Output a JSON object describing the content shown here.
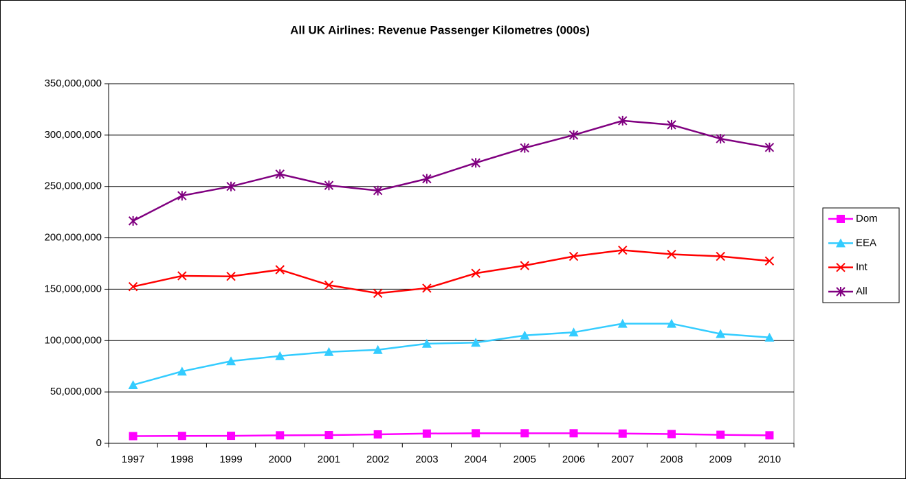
{
  "chart_data": {
    "type": "line",
    "title": "All UK Airlines: Revenue Passenger Kilometres (000s)",
    "categories": [
      "1997",
      "1998",
      "1999",
      "2000",
      "2001",
      "2002",
      "2003",
      "2004",
      "2005",
      "2006",
      "2007",
      "2008",
      "2009",
      "2010"
    ],
    "series": [
      {
        "name": "Dom",
        "color": "#ff00ff",
        "marker": "square",
        "values": [
          7000000,
          7200000,
          7300000,
          7800000,
          8000000,
          8700000,
          9500000,
          9800000,
          9800000,
          9800000,
          9500000,
          9000000,
          8300000,
          7800000
        ]
      },
      {
        "name": "EEA",
        "color": "#33ccff",
        "marker": "triangle",
        "values": [
          56800000,
          70000000,
          80000000,
          85000000,
          89000000,
          91000000,
          97000000,
          98000000,
          105000000,
          108000000,
          116500000,
          116500000,
          106500000,
          103000000
        ]
      },
      {
        "name": "Int",
        "color": "#ff0000",
        "marker": "x",
        "values": [
          152500000,
          163000000,
          162500000,
          169000000,
          154000000,
          146000000,
          151000000,
          165500000,
          173000000,
          182000000,
          188000000,
          184000000,
          182000000,
          177500000
        ]
      },
      {
        "name": "All",
        "color": "#800080",
        "marker": "asterisk",
        "values": [
          216500000,
          241000000,
          250000000,
          262000000,
          251000000,
          246000000,
          257500000,
          273000000,
          287500000,
          300000000,
          314000000,
          310000000,
          296500000,
          288000000
        ]
      }
    ],
    "ylim": [
      0,
      350000000
    ],
    "yticks": [
      0,
      {
        "value": 50000000,
        "label": "50,000,000"
      },
      {
        "value": 100000000,
        "label": "100,000,000"
      },
      {
        "value": 150000000,
        "label": "150,000,000"
      },
      {
        "value": 200000000,
        "label": "200,000,000"
      },
      {
        "value": 250000000,
        "label": "250,000,000"
      },
      {
        "value": 300000000,
        "label": "300,000,000"
      },
      {
        "value": 350000000,
        "label": "350,000,000"
      }
    ],
    "grid": true,
    "legend": "right"
  }
}
